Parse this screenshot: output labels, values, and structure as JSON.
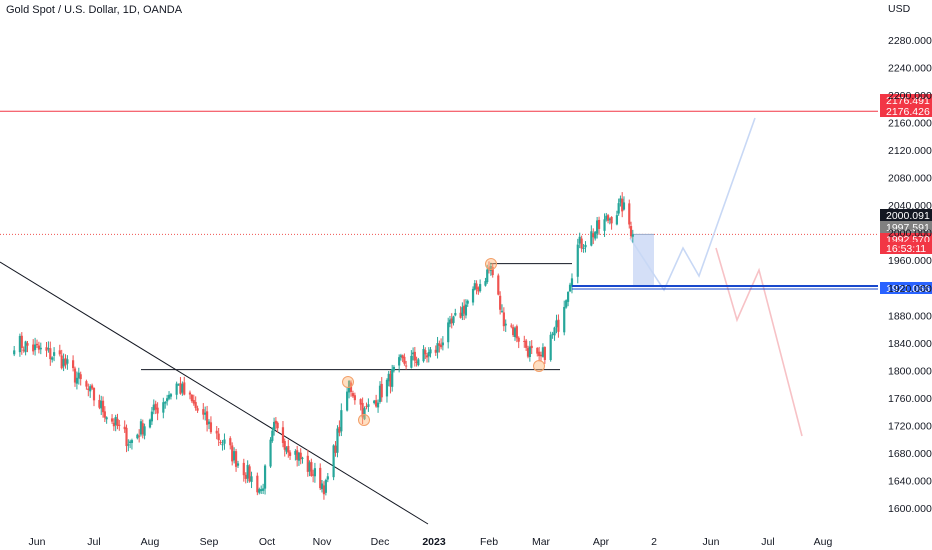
{
  "legend": {
    "text": "Gold Spot / U.S. Dollar, 1D, OANDA"
  },
  "currency": "USD",
  "colors": {
    "up": "#26a69a",
    "down": "#ef5350",
    "resistance": "#f23645",
    "support": "#1848cc",
    "projection_up": "#c8d8f5",
    "projection_down": "#f7c2c6",
    "zone": "#cfdcf6",
    "grid_text": "#131722"
  },
  "chart_data": {
    "type": "candlestick",
    "title": "Gold Spot / U.S. Dollar, 1D, OANDA",
    "ylabel": "USD",
    "ylim": [
      1585,
      2330
    ],
    "y_ticks": [
      "1600.000",
      "1640.000",
      "1680.000",
      "1720.000",
      "1760.000",
      "1800.000",
      "1840.000",
      "1880.000",
      "1920.000",
      "1960.000",
      "2000.000",
      "2040.000",
      "2080.000",
      "2120.000",
      "2160.000",
      "2200.000",
      "2240.000",
      "2280.000"
    ],
    "x_ticks": [
      {
        "label": "Jun",
        "bold": false
      },
      {
        "label": "Jul",
        "bold": false
      },
      {
        "label": "Aug",
        "bold": false
      },
      {
        "label": "Sep",
        "bold": false
      },
      {
        "label": "Oct",
        "bold": false
      },
      {
        "label": "Nov",
        "bold": false
      },
      {
        "label": "Dec",
        "bold": false
      },
      {
        "label": "2023",
        "bold": true
      },
      {
        "label": "Feb",
        "bold": false
      },
      {
        "label": "Mar",
        "bold": false
      },
      {
        "label": "Apr",
        "bold": false
      },
      {
        "label": "2",
        "bold": false
      },
      {
        "label": "Jun",
        "bold": false
      },
      {
        "label": "Jul",
        "bold": false
      },
      {
        "label": "Aug",
        "bold": false
      }
    ],
    "key_closes": [
      {
        "date": "2022-05-20",
        "close": 1842
      },
      {
        "date": "2022-06-13",
        "close": 1818
      },
      {
        "date": "2022-07-21",
        "close": 1695
      },
      {
        "date": "2022-08-15",
        "close": 1780
      },
      {
        "date": "2022-09-28",
        "close": 1625
      },
      {
        "date": "2022-10-05",
        "close": 1715
      },
      {
        "date": "2022-11-03",
        "close": 1630
      },
      {
        "date": "2022-11-15",
        "close": 1780
      },
      {
        "date": "2022-11-23",
        "close": 1738
      },
      {
        "date": "2022-12-13",
        "close": 1810
      },
      {
        "date": "2023-01-01",
        "close": 1826
      },
      {
        "date": "2023-02-02",
        "close": 1950
      },
      {
        "date": "2023-02-08",
        "close": 1880
      },
      {
        "date": "2023-02-28",
        "close": 1810
      },
      {
        "date": "2023-03-10",
        "close": 1868
      },
      {
        "date": "2023-03-20",
        "close": 1980
      },
      {
        "date": "2023-04-05",
        "close": 2020
      },
      {
        "date": "2023-04-13",
        "close": 2040
      },
      {
        "date": "2023-04-19",
        "close": 1997.591
      }
    ],
    "horizontal_levels": [
      {
        "label": "resistance",
        "value": 2176.4
      },
      {
        "label": "support",
        "value": 1921.066
      }
    ],
    "price_tags": [
      {
        "text": "2176.491",
        "style": "red"
      },
      {
        "text": "2176.426",
        "style": "red"
      },
      {
        "text": "2000.091",
        "style": "dark"
      },
      {
        "text": "1997.591",
        "style": "gray"
      },
      {
        "text": "1992.570",
        "style": "red"
      },
      {
        "text": "16:53:11",
        "style": "red"
      },
      {
        "text": "1921.066",
        "style": "blue"
      }
    ],
    "current_price": 1997.591,
    "grid": false
  }
}
